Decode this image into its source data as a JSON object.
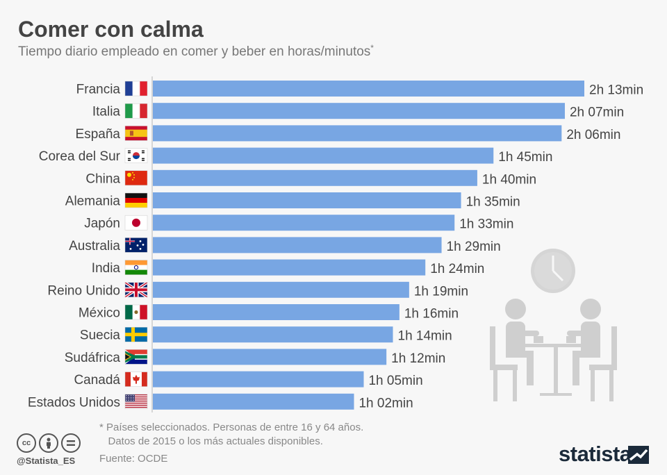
{
  "header": {
    "title": "Comer con calma",
    "subtitle": "Tiempo diario empleado en comer y beber en horas/minutos",
    "subtitle_mark": "*"
  },
  "chart_data": {
    "type": "bar",
    "orientation": "horizontal",
    "unit": "minutes",
    "categories": [
      "Francia",
      "Italia",
      "España",
      "Corea del Sur",
      "China",
      "Alemania",
      "Japón",
      "Australia",
      "India",
      "Reino Unido",
      "México",
      "Suecia",
      "Sudáfrica",
      "Canadá",
      "Estados Unidos"
    ],
    "values": [
      133,
      127,
      126,
      105,
      100,
      95,
      93,
      89,
      84,
      79,
      76,
      74,
      72,
      65,
      62
    ],
    "value_labels": [
      "2h 13min",
      "2h 07min",
      "2h 06min",
      "1h 45min",
      "1h 40min",
      "1h 35min",
      "1h 33min",
      "1h 29min",
      "1h 24min",
      "1h 19min",
      "1h 16min",
      "1h 14min",
      "1h 12min",
      "1h 05min",
      "1h 02min"
    ],
    "flags": [
      "fr",
      "it",
      "es",
      "kr",
      "cn",
      "de",
      "jp",
      "au",
      "in",
      "gb",
      "mx",
      "se",
      "za",
      "ca",
      "us"
    ],
    "xlim": [
      0,
      133
    ],
    "grid": false,
    "bar_color": "#78a6e3"
  },
  "footer": {
    "footnote_1": "* Países seleccionados. Personas de entre 16 y 64 años.",
    "footnote_2": "   Datos de 2015 o los más actuales disponibles.",
    "source": "Fuente: OCDE",
    "handle": "@Statista_ES",
    "brand": "statista",
    "cc_icons": [
      "cc",
      "by",
      "nd"
    ]
  }
}
